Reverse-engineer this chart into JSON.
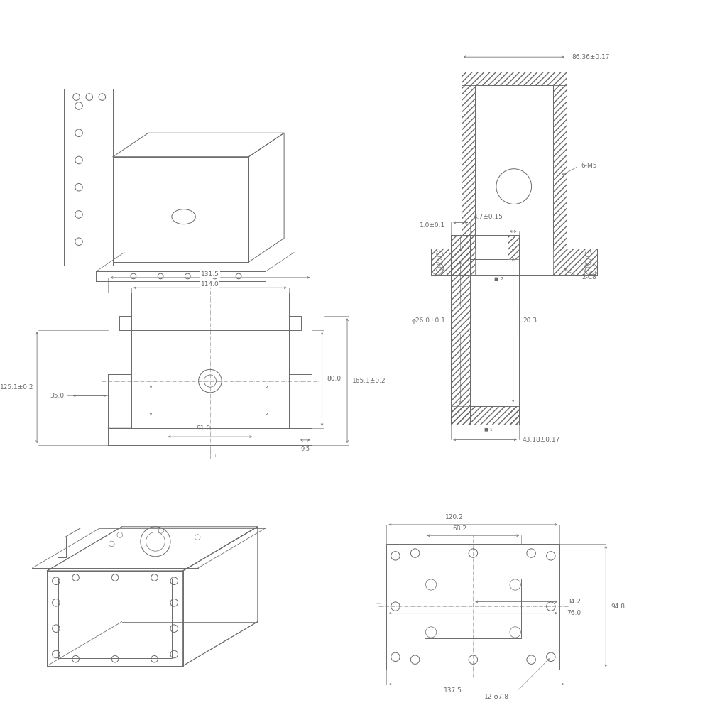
{
  "bg_color": "#ffffff",
  "line_color": "#6a6a6a",
  "dim_color": "#6a6a6a",
  "hatch_color": "#888888",
  "dims": {
    "top_width": "86.36±0.17",
    "label_6M5": "6-M5",
    "label_2C8": "2-C8",
    "front_131_5": "131.5",
    "front_114_0": "114.0",
    "front_35_0": "35.0",
    "front_80_0": "80.0",
    "front_125_1": "125.1±0.2",
    "front_165_1": "165.1±0.2",
    "front_91_0": "91.0",
    "front_9_5": "9.5",
    "side_4_7": "4.7±0.15",
    "side_1_0": "1.0±0.1",
    "side_phi26": "φ26.0±0.1",
    "side_20_3": "20.3",
    "side_43_18": "43.18±0.17",
    "bot_120_2": "120.2",
    "bot_68_2": "68.2",
    "bot_34_2": "34.2",
    "bot_76_0": "76.0",
    "bot_94_8": "94.8",
    "bot_137_5": "137.5",
    "bot_12phi7_8": "12-φ7.8"
  }
}
